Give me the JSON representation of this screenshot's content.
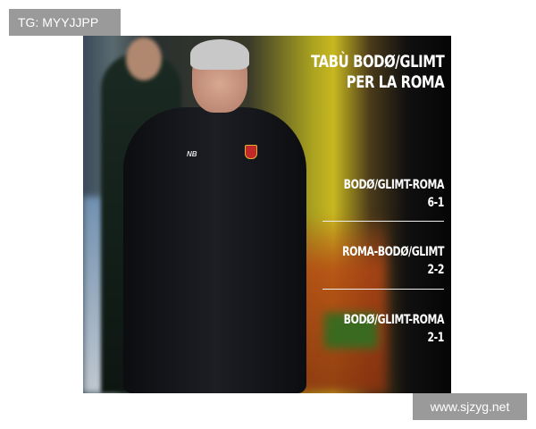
{
  "watermark_top": "TG: MYYJJPP",
  "watermark_bottom": "www.sjzyg.net",
  "graphic": {
    "title_lines": [
      "TABÙ BODØ/GLIMT",
      "PER LA ROMA"
    ],
    "matches": [
      {
        "fixture": "BODØ/GLIMT-ROMA",
        "score": "6-1"
      },
      {
        "fixture": "ROMA-BODØ/GLIMT",
        "score": "2-2"
      },
      {
        "fixture": "BODØ/GLIMT-ROMA",
        "score": "2-1"
      }
    ],
    "kit_logo": "NB"
  }
}
